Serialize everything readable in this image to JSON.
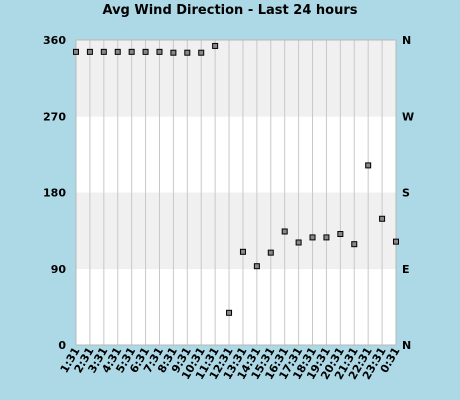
{
  "chart_data": {
    "type": "scatter",
    "title": "Avg Wind Direction - Last 24 hours",
    "categories": [
      "1:31",
      "2:31",
      "3:31",
      "4:31",
      "5:31",
      "6:31",
      "7:31",
      "8:31",
      "9:31",
      "10:31",
      "11:31",
      "12:31",
      "13:31",
      "14:31",
      "15:31",
      "16:31",
      "17:31",
      "18:31",
      "19:31",
      "20:31",
      "21:31",
      "22:31",
      "23:31",
      "0:31"
    ],
    "values": [
      346,
      346,
      346,
      346,
      346,
      346,
      346,
      345,
      345,
      345,
      353,
      38,
      110,
      93,
      109,
      134,
      121,
      127,
      127,
      131,
      119,
      212,
      149,
      122
    ],
    "ylim": [
      0,
      360
    ],
    "y_ticks": [
      "0",
      "90",
      "180",
      "270",
      "360"
    ],
    "right_ticks": [
      "N",
      "E",
      "S",
      "W",
      "N"
    ],
    "grid": true,
    "band_colors": [
      "#ffffff",
      "#f0f0f0"
    ],
    "marker_color": "#000000"
  }
}
